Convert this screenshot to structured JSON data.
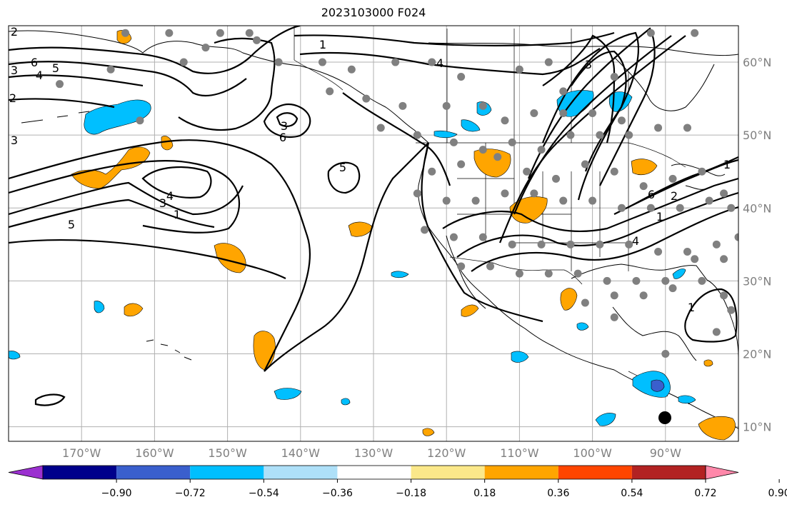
{
  "title": "2023103000 F024",
  "map": {
    "projection": "cylindrical",
    "lon_range": [
      -180,
      -80
    ],
    "lat_range": [
      8,
      65
    ],
    "lon_ticks": [
      "170°W",
      "160°W",
      "150°W",
      "140°W",
      "130°W",
      "120°W",
      "110°W",
      "100°W",
      "90°W"
    ],
    "lat_ticks": [
      "10°N",
      "20°N",
      "30°N",
      "40°N",
      "50°N",
      "60°N"
    ],
    "grid": true
  },
  "contour_labels": [
    "6",
    "4",
    "5",
    "2",
    "3",
    "3",
    "2",
    "1",
    "4",
    "3",
    "3",
    "6",
    "5",
    "4",
    "3",
    "1",
    "5",
    "4",
    "6",
    "2",
    "1",
    "1",
    "1"
  ],
  "colorbar": {
    "tick_labels": [
      "−0.90",
      "−0.72",
      "−0.54",
      "−0.36",
      "−0.18",
      "0.18",
      "0.36",
      "0.54",
      "0.72",
      "0.90"
    ],
    "colors": [
      "#9b30d0",
      "#00008b",
      "#3a5fcd",
      "#00bfff",
      "#aee0f8",
      "#ffffff",
      "#fbe88a",
      "#ffa500",
      "#ff4500",
      "#b22222",
      "#ff88aa"
    ]
  },
  "colors": {
    "positive_fill": "#ffa500",
    "negative_fill": "#00bfff",
    "strong_negative_fill": "#3a5fcd",
    "station_dot": "#808080",
    "marker": "#000000",
    "grid": "#b0b0b0"
  }
}
